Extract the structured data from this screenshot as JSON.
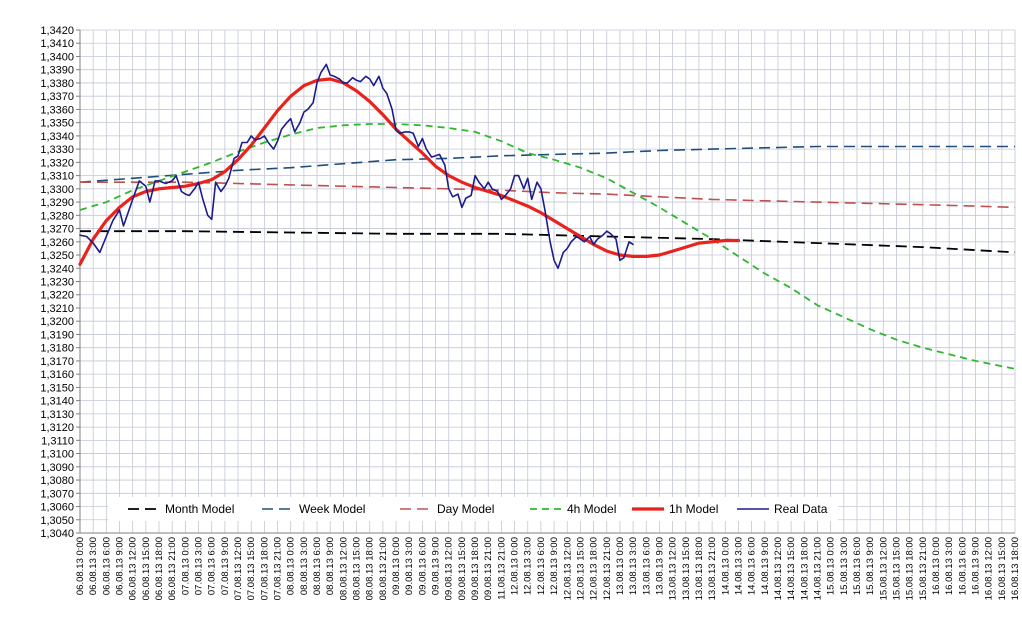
{
  "chart_data": {
    "type": "line",
    "title": "",
    "xlabel": "",
    "ylabel": "",
    "ylim": [
      1.304,
      1.342
    ],
    "grid": true,
    "legend_placement": "bottom-inside",
    "y_ticks": [
      "1,3040",
      "1,3050",
      "1,3060",
      "1,3070",
      "1,3080",
      "1,3090",
      "1,3100",
      "1,3110",
      "1,3120",
      "1,3130",
      "1,3140",
      "1,3150",
      "1,3160",
      "1,3170",
      "1,3180",
      "1,3190",
      "1,3200",
      "1,3210",
      "1,3220",
      "1,3230",
      "1,3240",
      "1,3250",
      "1,3260",
      "1,3270",
      "1,3280",
      "1,3290",
      "1,3300",
      "1,3310",
      "1,3320",
      "1,3330",
      "1,3340",
      "1,3350",
      "1,3360",
      "1,3370",
      "1,3380",
      "1,3390",
      "1,3400",
      "1,3410",
      "1,3420"
    ],
    "x_ticks": [
      "06.08.13 0:00",
      "06.08.13 3:00",
      "06.08.13 6:00",
      "06.08.13 9:00",
      "06.08.13 12:00",
      "06.08.13 15:00",
      "06.08.13 18:00",
      "06.08.13 21:00",
      "07.08.13 0:00",
      "07.08.13 3:00",
      "07.08.13 6:00",
      "07.08.13 9:00",
      "07.08.13 12:00",
      "07.08.13 15:00",
      "07.08.13 18:00",
      "07.08.13 21:00",
      "08.08.13 0:00",
      "08.08.13 3:00",
      "08.08.13 6:00",
      "08.08.13 9:00",
      "08.08.13 12:00",
      "08.08.13 15:00",
      "08.08.13 18:00",
      "08.08.13 21:00",
      "09.08.13 0:00",
      "09.08.13 3:00",
      "09.08.13 6:00",
      "09.08.13 9:00",
      "09.08.13 12:00",
      "09.08.13 15:00",
      "09.08.13 18:00",
      "09.08.13 21:00",
      "11.08.13 21:00",
      "12.08.13 0:00",
      "12.08.13 3:00",
      "12.08.13 6:00",
      "12.08.13 9:00",
      "12.08.13 12:00",
      "12.08.13 15:00",
      "12.08.13 18:00",
      "12.08.13 21:00",
      "13.08.13 0:00",
      "13.08.13 3:00",
      "13.08.13 6:00",
      "13.08.13 9:00",
      "13.08.13 12:00",
      "13.08.13 15:00",
      "13.08.13 18:00",
      "13.08.13 21:00",
      "14.08.13 0:00",
      "14.08.13 3:00",
      "14.08.13 6:00",
      "14.08.13 9:00",
      "14.08.13 12:00",
      "14.08.13 15:00",
      "14.08.13 18:00",
      "14.08.13 21:00",
      "15.08.13 0:00",
      "15.08.13 3:00",
      "15.08.13 6:00",
      "15.08.13 9:00",
      "15.08.13 12:00",
      "15.08.13 15:00",
      "15.08.13 18:00",
      "15.08.13 21:00",
      "16.08.13 0:00",
      "16.08.13 3:00",
      "16.08.13 6:00",
      "16.08.13 9:00",
      "16.08.13 12:00",
      "16.08.13 15:00",
      "16.08.13 18:00"
    ],
    "series": [
      {
        "name": "Month Model",
        "color": "#000000",
        "dash": "long",
        "width": 1.8,
        "points": [
          [
            0,
            1.3268
          ],
          [
            8,
            1.3268
          ],
          [
            16,
            1.3267
          ],
          [
            24,
            1.3266
          ],
          [
            32,
            1.3266
          ],
          [
            40,
            1.3264
          ],
          [
            48,
            1.3262
          ],
          [
            56,
            1.3259
          ],
          [
            64,
            1.3256
          ],
          [
            71,
            1.3252
          ]
        ]
      },
      {
        "name": "Week Model",
        "color": "#1F4E79",
        "dash": "long",
        "width": 1.6,
        "points": [
          [
            0,
            1.3305
          ],
          [
            4,
            1.3308
          ],
          [
            8,
            1.3311
          ],
          [
            12,
            1.3314
          ],
          [
            16,
            1.3316
          ],
          [
            20,
            1.3319
          ],
          [
            24,
            1.3322
          ],
          [
            28,
            1.3323
          ],
          [
            32,
            1.3325
          ],
          [
            36,
            1.3326
          ],
          [
            40,
            1.3327
          ],
          [
            44,
            1.3329
          ],
          [
            48,
            1.333
          ],
          [
            52,
            1.3331
          ],
          [
            56,
            1.3332
          ],
          [
            64,
            1.3332
          ],
          [
            71,
            1.3332
          ]
        ]
      },
      {
        "name": "Day Model",
        "color": "#C0504D",
        "dash": "long",
        "width": 1.6,
        "points": [
          [
            0,
            1.3305
          ],
          [
            4,
            1.3305
          ],
          [
            8,
            1.3305
          ],
          [
            12,
            1.3304
          ],
          [
            16,
            1.3303
          ],
          [
            20,
            1.3302
          ],
          [
            24,
            1.3301
          ],
          [
            28,
            1.33
          ],
          [
            32,
            1.3299
          ],
          [
            36,
            1.3297
          ],
          [
            40,
            1.3296
          ],
          [
            44,
            1.3294
          ],
          [
            48,
            1.3292
          ],
          [
            52,
            1.3291
          ],
          [
            56,
            1.329
          ],
          [
            60,
            1.3289
          ],
          [
            64,
            1.3288
          ],
          [
            68,
            1.3287
          ],
          [
            71,
            1.3286
          ]
        ]
      },
      {
        "name": "4h Model",
        "color": "#2DB82D",
        "dash": "medium",
        "width": 1.8,
        "points": [
          [
            0,
            1.3284
          ],
          [
            2,
            1.329
          ],
          [
            4,
            1.3299
          ],
          [
            6,
            1.3306
          ],
          [
            8,
            1.3313
          ],
          [
            10,
            1.332
          ],
          [
            12,
            1.3328
          ],
          [
            14,
            1.3335
          ],
          [
            16,
            1.3341
          ],
          [
            18,
            1.3346
          ],
          [
            20,
            1.3348
          ],
          [
            22,
            1.3349
          ],
          [
            24,
            1.3349
          ],
          [
            26,
            1.3348
          ],
          [
            28,
            1.3346
          ],
          [
            30,
            1.3343
          ],
          [
            32,
            1.3336
          ],
          [
            34,
            1.3327
          ],
          [
            36,
            1.3322
          ],
          [
            38,
            1.3316
          ],
          [
            40,
            1.3308
          ],
          [
            42,
            1.3297
          ],
          [
            44,
            1.3286
          ],
          [
            46,
            1.3274
          ],
          [
            48,
            1.3262
          ],
          [
            50,
            1.3249
          ],
          [
            52,
            1.3236
          ],
          [
            54,
            1.3225
          ],
          [
            56,
            1.3212
          ],
          [
            58,
            1.3203
          ],
          [
            60,
            1.3194
          ],
          [
            62,
            1.3186
          ],
          [
            64,
            1.318
          ],
          [
            66,
            1.3175
          ],
          [
            68,
            1.317
          ],
          [
            70,
            1.3166
          ],
          [
            71,
            1.3164
          ]
        ]
      },
      {
        "name": "1h Model",
        "color": "#E8231B",
        "dash": "solid",
        "width": 3.2,
        "points": [
          [
            0,
            1.3243
          ],
          [
            1,
            1.3262
          ],
          [
            2,
            1.3276
          ],
          [
            3,
            1.3286
          ],
          [
            4,
            1.3294
          ],
          [
            5,
            1.3298
          ],
          [
            6,
            1.33
          ],
          [
            7,
            1.3301
          ],
          [
            8,
            1.3302
          ],
          [
            9,
            1.3304
          ],
          [
            10,
            1.3307
          ],
          [
            11,
            1.3313
          ],
          [
            12,
            1.3322
          ],
          [
            13,
            1.3333
          ],
          [
            14,
            1.3346
          ],
          [
            15,
            1.3359
          ],
          [
            16,
            1.337
          ],
          [
            17,
            1.3378
          ],
          [
            18,
            1.3382
          ],
          [
            19,
            1.3383
          ],
          [
            20,
            1.338
          ],
          [
            21,
            1.3374
          ],
          [
            22,
            1.3366
          ],
          [
            23,
            1.3356
          ],
          [
            24,
            1.3345
          ],
          [
            25,
            1.3336
          ],
          [
            26,
            1.3327
          ],
          [
            27,
            1.3317
          ],
          [
            28,
            1.331
          ],
          [
            29,
            1.3305
          ],
          [
            30,
            1.3301
          ],
          [
            31,
            1.3298
          ],
          [
            32,
            1.3295
          ],
          [
            33,
            1.3291
          ],
          [
            34,
            1.3287
          ],
          [
            35,
            1.3282
          ],
          [
            36,
            1.3276
          ],
          [
            37,
            1.327
          ],
          [
            38,
            1.3264
          ],
          [
            39,
            1.3258
          ],
          [
            40,
            1.3253
          ],
          [
            41,
            1.325
          ],
          [
            42,
            1.3249
          ],
          [
            43,
            1.3249
          ],
          [
            44,
            1.325
          ],
          [
            45,
            1.3253
          ],
          [
            46,
            1.3256
          ],
          [
            47,
            1.3259
          ],
          [
            48,
            1.326
          ],
          [
            49,
            1.3261
          ],
          [
            50,
            1.3261
          ]
        ]
      },
      {
        "name": "Real Data",
        "color": "#1C1C8C",
        "dash": "solid",
        "width": 1.6,
        "points": [
          [
            0,
            1.3265
          ],
          [
            0.5,
            1.3264
          ],
          [
            1,
            1.3259
          ],
          [
            1.5,
            1.3252
          ],
          [
            2,
            1.3264
          ],
          [
            2.5,
            1.3276
          ],
          [
            3,
            1.3284
          ],
          [
            3.3,
            1.3272
          ],
          [
            4,
            1.3292
          ],
          [
            4.5,
            1.3306
          ],
          [
            5,
            1.3302
          ],
          [
            5.3,
            1.329
          ],
          [
            5.7,
            1.3306
          ],
          [
            6,
            1.3306
          ],
          [
            6.5,
            1.3304
          ],
          [
            7,
            1.3306
          ],
          [
            7.3,
            1.331
          ],
          [
            7.7,
            1.3298
          ],
          [
            8,
            1.3296
          ],
          [
            8.3,
            1.3295
          ],
          [
            8.7,
            1.33
          ],
          [
            9,
            1.3305
          ],
          [
            9.3,
            1.3293
          ],
          [
            9.7,
            1.328
          ],
          [
            10,
            1.3277
          ],
          [
            10.3,
            1.3305
          ],
          [
            10.7,
            1.3298
          ],
          [
            11,
            1.3302
          ],
          [
            11.3,
            1.3308
          ],
          [
            11.7,
            1.3323
          ],
          [
            12,
            1.3325
          ],
          [
            12.3,
            1.3335
          ],
          [
            12.7,
            1.3335
          ],
          [
            13,
            1.334
          ],
          [
            13.3,
            1.3337
          ],
          [
            13.7,
            1.3338
          ],
          [
            14,
            1.334
          ],
          [
            14.3,
            1.3335
          ],
          [
            14.7,
            1.333
          ],
          [
            15,
            1.3336
          ],
          [
            15.3,
            1.3345
          ],
          [
            15.7,
            1.335
          ],
          [
            16,
            1.3353
          ],
          [
            16.3,
            1.3343
          ],
          [
            16.7,
            1.335
          ],
          [
            17,
            1.3358
          ],
          [
            17.3,
            1.336
          ],
          [
            17.7,
            1.3365
          ],
          [
            18,
            1.338
          ],
          [
            18.3,
            1.3388
          ],
          [
            18.7,
            1.3394
          ],
          [
            19,
            1.3386
          ],
          [
            19.3,
            1.3385
          ],
          [
            19.7,
            1.3383
          ],
          [
            20,
            1.338
          ],
          [
            20.3,
            1.338
          ],
          [
            20.7,
            1.3384
          ],
          [
            21,
            1.3382
          ],
          [
            21.3,
            1.3381
          ],
          [
            21.7,
            1.3385
          ],
          [
            22,
            1.3383
          ],
          [
            22.3,
            1.3378
          ],
          [
            22.7,
            1.3385
          ],
          [
            23,
            1.3376
          ],
          [
            23.3,
            1.3372
          ],
          [
            23.7,
            1.336
          ],
          [
            24,
            1.3344
          ],
          [
            24.3,
            1.3342
          ],
          [
            24.7,
            1.3343
          ],
          [
            25,
            1.3343
          ],
          [
            25.3,
            1.3342
          ],
          [
            25.7,
            1.3332
          ],
          [
            26,
            1.3338
          ],
          [
            26.3,
            1.333
          ],
          [
            26.7,
            1.3324
          ],
          [
            27,
            1.3325
          ],
          [
            27.3,
            1.3326
          ],
          [
            27.7,
            1.3318
          ],
          [
            28,
            1.33
          ],
          [
            28.3,
            1.3294
          ],
          [
            28.7,
            1.3296
          ],
          [
            29,
            1.3286
          ],
          [
            29.3,
            1.3293
          ],
          [
            29.7,
            1.3295
          ],
          [
            30,
            1.331
          ],
          [
            30.3,
            1.3305
          ],
          [
            30.7,
            1.33
          ],
          [
            31,
            1.3305
          ],
          [
            31.3,
            1.33
          ],
          [
            31.7,
            1.3298
          ],
          [
            32,
            1.3292
          ],
          [
            32.3,
            1.3295
          ],
          [
            32.7,
            1.33
          ],
          [
            33,
            1.331
          ],
          [
            33.3,
            1.331
          ],
          [
            33.7,
            1.33
          ],
          [
            34,
            1.3308
          ],
          [
            34.3,
            1.3292
          ],
          [
            34.7,
            1.3305
          ],
          [
            35,
            1.33
          ],
          [
            35.3,
            1.3284
          ],
          [
            35.7,
            1.326
          ],
          [
            36,
            1.3246
          ],
          [
            36.3,
            1.324
          ],
          [
            36.7,
            1.3252
          ],
          [
            37,
            1.3255
          ],
          [
            37.3,
            1.326
          ],
          [
            37.7,
            1.3264
          ],
          [
            38,
            1.3262
          ],
          [
            38.3,
            1.326
          ],
          [
            38.7,
            1.3264
          ],
          [
            39,
            1.3258
          ],
          [
            39.3,
            1.3262
          ],
          [
            39.7,
            1.3265
          ],
          [
            40,
            1.3268
          ],
          [
            40.3,
            1.3266
          ],
          [
            40.7,
            1.3262
          ],
          [
            41,
            1.3246
          ],
          [
            41.3,
            1.3248
          ],
          [
            41.7,
            1.326
          ],
          [
            42,
            1.3258
          ]
        ]
      }
    ]
  }
}
